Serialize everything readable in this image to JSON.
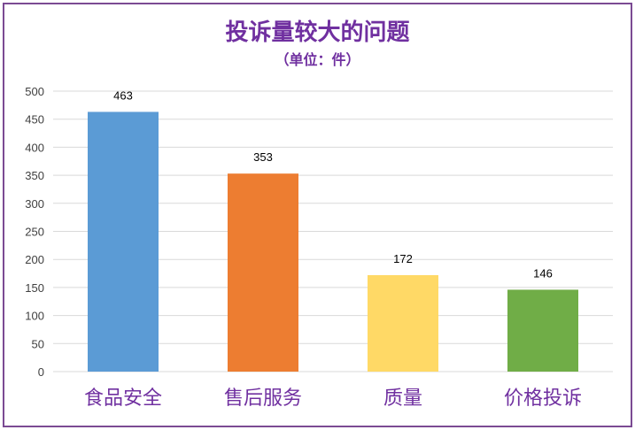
{
  "chart_data": {
    "type": "bar",
    "title": "投诉量较大的问题",
    "subtitle": "（单位：件）",
    "categories": [
      "食品安全",
      "售后服务",
      "质量",
      "价格投诉"
    ],
    "values": [
      463,
      353,
      172,
      146
    ],
    "colors": [
      "#5b9bd5",
      "#ed7d31",
      "#ffd966",
      "#70ad47"
    ],
    "ylim": [
      0,
      500
    ],
    "yticks": [
      0,
      50,
      100,
      150,
      200,
      250,
      300,
      350,
      400,
      450,
      500
    ],
    "grid": true,
    "legend": "none"
  },
  "style": {
    "frame_color": "#7b4a93",
    "title_color": "#7030a0",
    "category_label_color": "#7030a0",
    "grid_color": "#d9d9d9"
  }
}
